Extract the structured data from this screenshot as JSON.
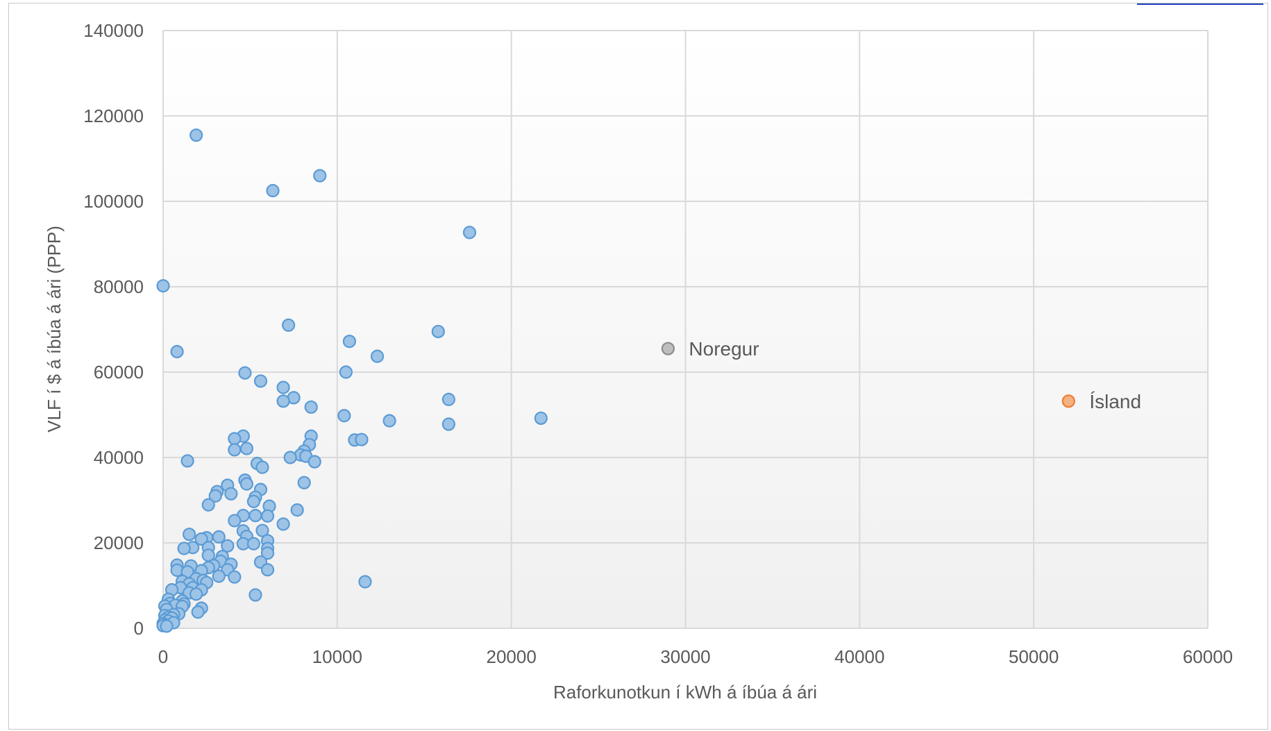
{
  "chart_data": {
    "type": "scatter",
    "title": "",
    "xlabel": "Raforkunotkun í kWh á íbúa á ári",
    "ylabel": "VLF í $ á íbúa á ári (PPP)",
    "xlim": [
      0,
      60000
    ],
    "ylim": [
      0,
      140000
    ],
    "x_ticks": [
      "0",
      "10000",
      "20000",
      "30000",
      "40000",
      "50000",
      "60000"
    ],
    "y_ticks": [
      "0",
      "20000",
      "40000",
      "60000",
      "80000",
      "100000",
      "120000",
      "140000"
    ],
    "grid": true,
    "legend": "none",
    "colors": {
      "default": "#9dc3e6",
      "default_stroke": "#5b9bd5",
      "noregur": "#bfbfbf",
      "noregur_stroke": "#8c8c8c",
      "island": "#f4b183",
      "island_stroke": "#ed7d31",
      "grid": "#d9d9d9",
      "plot_bg_top": "#ffffff",
      "plot_bg_bottom": "#f2f2f2"
    },
    "series": [
      {
        "points": [
          [
            1900,
            115500
          ],
          [
            9000,
            106000
          ],
          [
            6300,
            102500
          ],
          [
            17600,
            92700
          ],
          [
            0,
            80200
          ],
          [
            7200,
            71000
          ],
          [
            15800,
            69500
          ],
          [
            10700,
            67200
          ],
          [
            800,
            64800
          ],
          [
            12300,
            63700
          ],
          [
            10500,
            60000
          ],
          [
            4700,
            59800
          ],
          [
            5600,
            57900
          ],
          [
            6900,
            56400
          ],
          [
            7500,
            54000
          ],
          [
            6900,
            53200
          ],
          [
            16400,
            53600
          ],
          [
            8500,
            51800
          ],
          [
            10400,
            49800
          ],
          [
            13000,
            48600
          ],
          [
            21700,
            49200
          ],
          [
            16400,
            47800
          ],
          [
            4600,
            45000
          ],
          [
            8500,
            45000
          ],
          [
            4100,
            44400
          ],
          [
            11000,
            44100
          ],
          [
            11400,
            44200
          ],
          [
            8400,
            43000
          ],
          [
            4100,
            41800
          ],
          [
            4800,
            42100
          ],
          [
            8100,
            41500
          ],
          [
            7900,
            40600
          ],
          [
            7300,
            40000
          ],
          [
            8200,
            40300
          ],
          [
            8700,
            39000
          ],
          [
            1400,
            39200
          ],
          [
            5400,
            38600
          ],
          [
            5700,
            37700
          ],
          [
            4700,
            34700
          ],
          [
            4800,
            33800
          ],
          [
            8100,
            34100
          ],
          [
            3700,
            33500
          ],
          [
            5600,
            32500
          ],
          [
            3100,
            32000
          ],
          [
            3900,
            31500
          ],
          [
            3000,
            31000
          ],
          [
            5300,
            30700
          ],
          [
            5200,
            29700
          ],
          [
            2600,
            28900
          ],
          [
            6100,
            28600
          ],
          [
            7700,
            27700
          ],
          [
            5300,
            26400
          ],
          [
            6000,
            26300
          ],
          [
            4600,
            26400
          ],
          [
            4100,
            25200
          ],
          [
            6900,
            24400
          ],
          [
            5700,
            22900
          ],
          [
            4600,
            22800
          ],
          [
            1500,
            22000
          ],
          [
            4800,
            21500
          ],
          [
            3200,
            21400
          ],
          [
            2500,
            21200
          ],
          [
            2200,
            20900
          ],
          [
            6000,
            20500
          ],
          [
            4600,
            19800
          ],
          [
            5200,
            19800
          ],
          [
            3700,
            19300
          ],
          [
            1700,
            18900
          ],
          [
            1200,
            18700
          ],
          [
            2600,
            18900
          ],
          [
            6000,
            18700
          ],
          [
            6000,
            17600
          ],
          [
            2600,
            17100
          ],
          [
            3400,
            16800
          ],
          [
            3300,
            15700
          ],
          [
            5600,
            15500
          ],
          [
            800,
            14800
          ],
          [
            1600,
            14600
          ],
          [
            3900,
            15000
          ],
          [
            2900,
            14700
          ],
          [
            2600,
            14200
          ],
          [
            800,
            13600
          ],
          [
            1400,
            13200
          ],
          [
            2200,
            13500
          ],
          [
            3700,
            13700
          ],
          [
            6000,
            13700
          ],
          [
            3200,
            12200
          ],
          [
            4100,
            12000
          ],
          [
            1100,
            11000
          ],
          [
            1900,
            11600
          ],
          [
            2300,
            11200
          ],
          [
            1500,
            10400
          ],
          [
            2500,
            10700
          ],
          [
            11600,
            10900
          ],
          [
            1000,
            9500
          ],
          [
            500,
            9000
          ],
          [
            1700,
            9500
          ],
          [
            2200,
            9000
          ],
          [
            1500,
            8300
          ],
          [
            1900,
            8000
          ],
          [
            5300,
            7800
          ],
          [
            300,
            6800
          ],
          [
            1100,
            6400
          ],
          [
            1200,
            5700
          ],
          [
            400,
            5800
          ],
          [
            700,
            5400
          ],
          [
            1100,
            5100
          ],
          [
            100,
            5200
          ],
          [
            2200,
            4700
          ],
          [
            200,
            4400
          ],
          [
            900,
            3400
          ],
          [
            2000,
            3800
          ],
          [
            600,
            3200
          ],
          [
            100,
            3000
          ],
          [
            300,
            2600
          ],
          [
            500,
            2400
          ],
          [
            100,
            1900
          ],
          [
            300,
            1700
          ],
          [
            600,
            1300
          ],
          [
            0,
            1100
          ],
          [
            100,
            800
          ],
          [
            0,
            600
          ],
          [
            200,
            500
          ]
        ]
      },
      {
        "name": "Noregur",
        "points": [
          [
            29000,
            65500
          ]
        ]
      },
      {
        "name": "Ísland",
        "points": [
          [
            52000,
            53200
          ]
        ]
      }
    ]
  }
}
